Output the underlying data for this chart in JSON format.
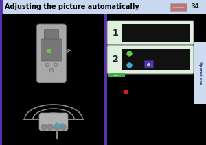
{
  "title": "Adjusting the picture automatically",
  "page_num": "34",
  "header_bg": "#c8d8ee",
  "header_stripe_color": "#5533aa",
  "header_text_color": "#000000",
  "main_bg": "#000000",
  "left_bg": "#000000",
  "right_bg": "#000000",
  "box_bg": "#dff0df",
  "box_border": "#888888",
  "box1_label": "1",
  "box2_label": "2",
  "box_inner_bg": "#111111",
  "right_side_label": "Operations",
  "right_side_bg": "#cddcef",
  "purple_stripe": "#5533aa",
  "remote_body": "#a8a8a8",
  "remote_dark": "#777777",
  "green_dot": "#66cc44",
  "cyan_dot": "#44aacc",
  "purple_icon_bg": "#5533aa",
  "red_dot": "#cc2222",
  "auto_green": "#44aa44",
  "contents_btn": "#bb7777",
  "page_bg_bottom": "#000000"
}
